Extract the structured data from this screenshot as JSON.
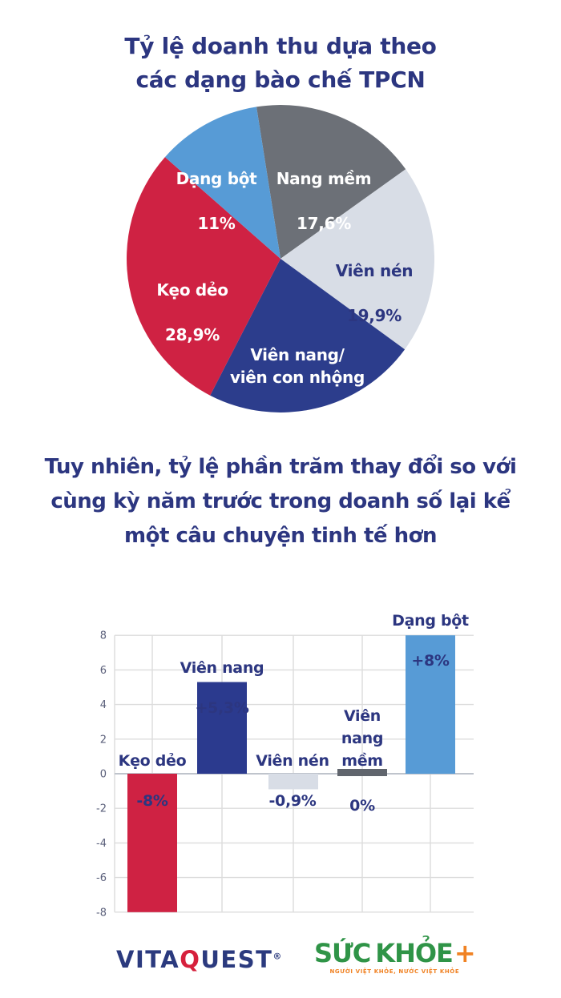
{
  "page": {
    "title": "Tỷ lệ doanh thu dựa theo\ncác dạng bào chế TPCN",
    "subtitle": "Tuy nhiên, tỷ lệ phần trăm thay đổi so với\ncùng kỳ năm trước trong doanh số lại kể\nmột câu chuyện tinh tế hơn"
  },
  "colors": {
    "navy_text": "#2c3680",
    "red": "#cf2243",
    "navy": "#2c3d8c",
    "light_blue": "#579bd6",
    "dark_gray": "#6c7077",
    "dark_gray_bar": "#60656d",
    "light_gray": "#d8dde6",
    "gridline": "#dcdcdc",
    "tick_text": "#5a5f7a",
    "logo_navy": "#2b3a7e",
    "logo_red": "#d6203c",
    "logo_green": "#2f9447",
    "logo_orange": "#f08223"
  },
  "chart_data": [
    {
      "type": "pie",
      "title": "Tỷ lệ doanh thu dựa theo các dạng bào chế TPCN",
      "start_angle_deg": -9,
      "total": 99.9,
      "slices": [
        {
          "name": "Nang mềm",
          "value": 17.6,
          "display": "17,6%",
          "color": "#6c7077",
          "label_color": "#ffffff"
        },
        {
          "name": "Viên nén",
          "value": 19.9,
          "display": "19,9%",
          "color": "#d8dde6",
          "label_color": "#2c3680"
        },
        {
          "name": "Viên nang/\nviên con nhộng",
          "value": 22.5,
          "display": "22,5%",
          "color": "#2c3d8c",
          "label_color": "#ffffff"
        },
        {
          "name": "Kẹo dẻo",
          "value": 28.9,
          "display": "28,9%",
          "color": "#cf2243",
          "label_color": "#ffffff"
        },
        {
          "name": "Dạng bột",
          "value": 11,
          "display": "11%",
          "color": "#579bd6",
          "label_color": "#ffffff"
        }
      ]
    },
    {
      "type": "bar",
      "title": "Tỷ lệ phần trăm thay đổi so với cùng kỳ năm trước trong doanh số",
      "categories": [
        "Kẹo dẻo",
        "Viên nang",
        "Viên nén",
        "Viên\nnang\nmềm",
        "Dạng bột"
      ],
      "values": [
        -8,
        5.3,
        -0.9,
        0,
        8
      ],
      "displays": [
        "-8%",
        "+5,3%",
        "-0,9%",
        "0%",
        "+8%"
      ],
      "colors": [
        "#cf2243",
        "#2b3a8e",
        "#d8dde6",
        "#60656d",
        "#579bd6"
      ],
      "ylim": [
        -8,
        8
      ],
      "yticks": [
        8,
        6,
        4,
        2,
        0,
        -2,
        -4,
        -6,
        -8
      ],
      "grid": true,
      "legend": null,
      "xlabel": "",
      "ylabel": ""
    }
  ],
  "footer": {
    "vitaquest": {
      "part1": "VITA",
      "q": "Q",
      "part2": "UEST",
      "reg": "®"
    },
    "suckhoe": {
      "word1": "SỨC",
      "word2": "KHỎE",
      "plus": "+",
      "tagline": "NGƯỜI VIỆT KHỎE, NƯỚC VIỆT KHỎE"
    }
  }
}
